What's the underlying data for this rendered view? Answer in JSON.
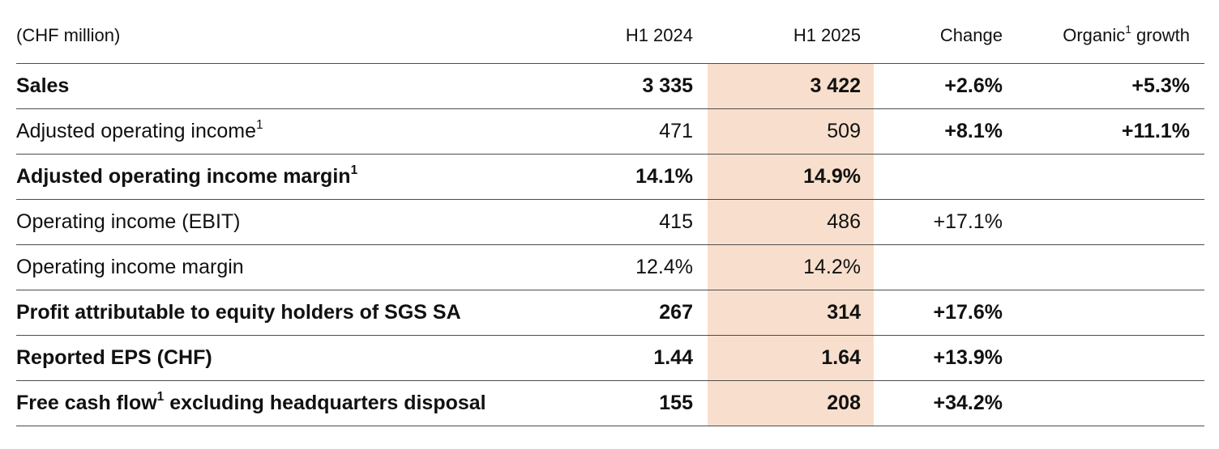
{
  "colors": {
    "highlight_band": "#f8dfcd",
    "rule_line": "#4c4c4c",
    "text": "#111111"
  },
  "table": {
    "unit_header": "(CHF million)",
    "columns": {
      "h1_2024": "H1 2024",
      "h1_2025": "H1 2025",
      "change": "Change",
      "organic": {
        "pre": "Organic",
        "sup": "1",
        "post": " growth"
      }
    },
    "rows": [
      {
        "label": {
          "pre": "Sales",
          "sup": "",
          "post": ""
        },
        "v2024": "3 335",
        "v2025": "3 422",
        "change": "+2.6%",
        "organic": "+5.3%"
      },
      {
        "label": {
          "pre": "Adjusted operating income",
          "sup": "1",
          "post": ""
        },
        "v2024": "471",
        "v2025": "509",
        "change": "+8.1%",
        "organic": "+11.1%"
      },
      {
        "label": {
          "pre": "Adjusted operating income margin",
          "sup": "1",
          "post": ""
        },
        "v2024": "14.1%",
        "v2025": "14.9%",
        "change": "",
        "organic": ""
      },
      {
        "label": {
          "pre": "Operating income (EBIT)",
          "sup": "",
          "post": ""
        },
        "v2024": "415",
        "v2025": "486",
        "change": "+17.1%",
        "organic": ""
      },
      {
        "label": {
          "pre": "Operating income margin",
          "sup": "",
          "post": ""
        },
        "v2024": "12.4%",
        "v2025": "14.2%",
        "change": "",
        "organic": ""
      },
      {
        "label": {
          "pre": "Profit attributable to equity holders of SGS SA",
          "sup": "",
          "post": ""
        },
        "v2024": "267",
        "v2025": "314",
        "change": "+17.6%",
        "organic": ""
      },
      {
        "label": {
          "pre": "Reported EPS (CHF)",
          "sup": "",
          "post": ""
        },
        "v2024": "1.44",
        "v2025": "1.64",
        "change": "+13.9%",
        "organic": ""
      },
      {
        "label": {
          "pre": "Free cash flow",
          "sup": "1",
          "post": " excluding headquarters disposal"
        },
        "v2024": "155",
        "v2025": "208",
        "change": "+34.2%",
        "organic": ""
      }
    ]
  }
}
